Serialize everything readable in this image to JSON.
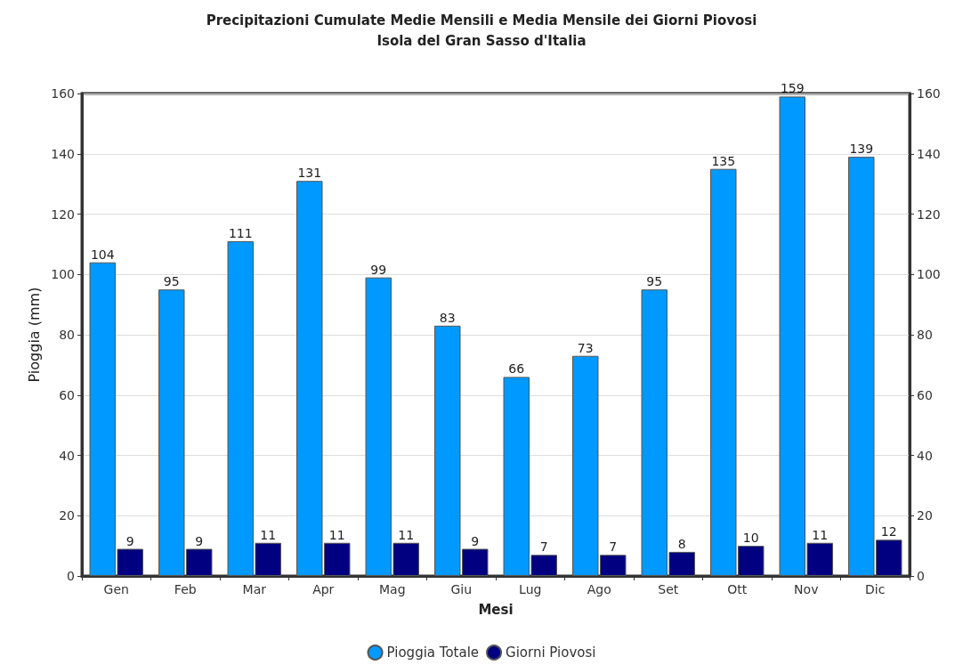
{
  "chart_data": {
    "type": "bar",
    "title": "Precipitazioni Cumulate Medie Mensili e Media Mensile dei Giorni Piovosi",
    "subtitle": "Isola del Gran Sasso d'Italia",
    "xlabel": "Mesi",
    "ylabel": "Pioggia (mm)",
    "categories": [
      "Gen",
      "Feb",
      "Mar",
      "Apr",
      "Mag",
      "Giu",
      "Lug",
      "Ago",
      "Set",
      "Ott",
      "Nov",
      "Dic"
    ],
    "series": [
      {
        "name": "Pioggia Totale",
        "color": "#0099ff",
        "values": [
          104,
          95,
          111,
          131,
          99,
          83,
          66,
          73,
          95,
          135,
          159,
          139
        ]
      },
      {
        "name": "Giorni Piovosi",
        "color": "#000080",
        "values": [
          9,
          9,
          11,
          11,
          11,
          9,
          7,
          7,
          8,
          10,
          11,
          12
        ]
      }
    ],
    "ylim": [
      0,
      160
    ],
    "yticks": [
      0,
      20,
      40,
      60,
      80,
      100,
      120,
      140,
      160
    ],
    "y2lim": [
      0,
      160
    ],
    "y2ticks": [
      0,
      20,
      40,
      60,
      80,
      100,
      120,
      140,
      160
    ],
    "data_labels": true,
    "grid": "y",
    "legend": "bottom"
  }
}
